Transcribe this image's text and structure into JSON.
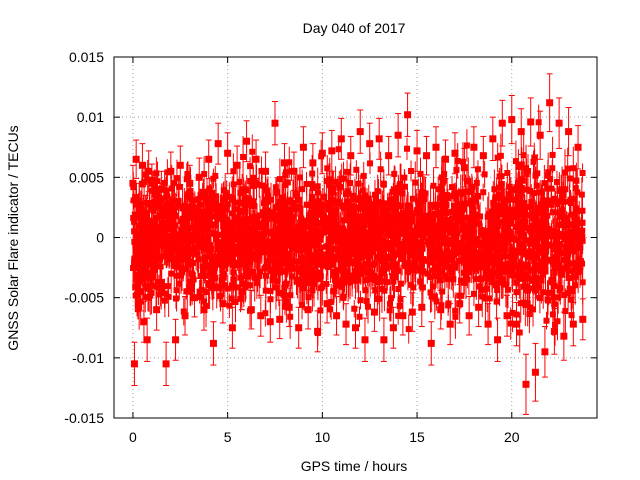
{
  "chart_data": {
    "type": "scatter",
    "title": "Day 040 of 2017",
    "xlabel": "GPS time / hours",
    "ylabel": "GNSS Solar Flare indicator / TECUs",
    "xlim": [
      -1,
      24.5
    ],
    "ylim": [
      -0.015,
      0.015
    ],
    "x_ticks": [
      0,
      5,
      10,
      15,
      20
    ],
    "x_tick_labels": [
      "0",
      "5",
      "10",
      "15",
      "20"
    ],
    "y_ticks": [
      -0.015,
      -0.01,
      -0.005,
      0,
      0.005,
      0.01,
      0.015
    ],
    "y_tick_labels": [
      "-0.015",
      "-0.01",
      "-0.005",
      "0",
      "0.005",
      "0.01",
      "0.015"
    ],
    "grid": true,
    "marker": "filled-square",
    "error_bars": true,
    "color": "#ff0000",
    "series": [
      {
        "x": [
          0.0,
          0.08,
          0.17,
          0.25,
          0.33,
          0.42,
          0.5,
          0.58,
          0.67,
          0.75,
          0.83,
          0.92,
          1.0,
          1.25,
          1.5,
          1.75,
          2.0,
          2.25,
          2.5,
          2.75,
          3.0,
          3.25,
          3.5,
          3.75,
          4.0,
          4.25,
          4.5,
          4.75,
          5.0,
          5.25,
          5.5,
          5.75,
          6.0,
          6.25,
          6.5,
          6.75,
          7.0,
          7.25,
          7.5,
          7.75,
          8.0,
          8.25,
          8.5,
          8.75,
          9.0,
          9.25,
          9.5,
          9.75,
          10.0,
          10.25,
          10.5,
          10.75,
          11.0,
          11.25,
          11.5,
          11.75,
          12.0,
          12.25,
          12.5,
          12.75,
          13.0,
          13.25,
          13.5,
          13.75,
          14.0,
          14.25,
          14.5,
          14.75,
          15.0,
          15.25,
          15.5,
          15.75,
          16.0,
          16.25,
          16.5,
          16.75,
          17.0,
          17.25,
          17.5,
          17.75,
          18.0,
          18.25,
          18.5,
          18.75,
          19.0,
          19.25,
          19.5,
          19.75,
          20.0,
          20.25,
          20.5,
          20.75,
          21.0,
          21.25,
          21.5,
          21.75,
          22.0,
          22.25,
          22.5,
          22.75,
          23.0,
          23.25,
          23.5,
          23.75
        ],
        "y": [
          0.0045,
          -0.0105,
          0.0065,
          -0.0025,
          0.003,
          -0.0045,
          0.006,
          -0.007,
          0.002,
          -0.0085,
          0.0055,
          -0.003,
          0.0045,
          -0.006,
          0.004,
          -0.0105,
          0.0055,
          -0.0085,
          0.006,
          -0.0065,
          0.0045,
          -0.005,
          0.005,
          -0.006,
          0.0065,
          -0.0088,
          0.0078,
          -0.0055,
          0.007,
          -0.0075,
          0.006,
          -0.0045,
          0.008,
          -0.006,
          0.0065,
          -0.0065,
          0.0055,
          -0.007,
          0.0095,
          -0.0068,
          0.0062,
          -0.0058,
          0.0055,
          -0.0075,
          0.0075,
          -0.006,
          0.0062,
          -0.0078,
          0.007,
          -0.0055,
          0.0072,
          -0.0065,
          0.0082,
          -0.0072,
          0.0068,
          -0.0075,
          0.0088,
          -0.0085,
          0.0078,
          -0.0062,
          0.0082,
          -0.0085,
          0.0068,
          -0.0075,
          0.0085,
          -0.0065,
          0.0102,
          -0.0062,
          0.0072,
          -0.0058,
          0.0068,
          -0.0088,
          0.0075,
          -0.006,
          0.0065,
          -0.0072,
          0.007,
          -0.0055,
          0.0058,
          -0.0065,
          0.0075,
          -0.0058,
          0.0068,
          -0.0072,
          0.0082,
          -0.0085,
          0.0095,
          -0.0065,
          0.0098,
          -0.0072,
          0.0088,
          -0.0122,
          0.0096,
          -0.0112,
          0.0085,
          -0.0095,
          0.0112,
          -0.0078,
          0.0095,
          -0.0082,
          0.0088,
          -0.0072,
          0.0075,
          -0.0068
        ],
        "yerr": [
          0.0015,
          0.0018,
          0.0016,
          0.0015,
          0.0015,
          0.0016,
          0.0018,
          0.0017,
          0.0015,
          0.0018,
          0.0017,
          0.0015,
          0.0016,
          0.0017,
          0.0015,
          0.0018,
          0.0016,
          0.0017,
          0.0016,
          0.0016,
          0.0015,
          0.0016,
          0.0016,
          0.0017,
          0.0016,
          0.0018,
          0.0017,
          0.0016,
          0.0017,
          0.0017,
          0.0016,
          0.0015,
          0.0017,
          0.0016,
          0.0016,
          0.0017,
          0.0016,
          0.0017,
          0.0018,
          0.0016,
          0.0016,
          0.0016,
          0.0016,
          0.0017,
          0.0017,
          0.0016,
          0.0016,
          0.0017,
          0.0017,
          0.0016,
          0.0017,
          0.0016,
          0.0017,
          0.0017,
          0.0016,
          0.0017,
          0.0018,
          0.0018,
          0.0017,
          0.0016,
          0.0017,
          0.0018,
          0.0016,
          0.0017,
          0.0018,
          0.0016,
          0.0018,
          0.0016,
          0.0017,
          0.0016,
          0.0016,
          0.0018,
          0.0017,
          0.0016,
          0.0016,
          0.0017,
          0.0017,
          0.0016,
          0.0016,
          0.0016,
          0.0017,
          0.0016,
          0.0016,
          0.0017,
          0.0018,
          0.0018,
          0.0019,
          0.0017,
          0.002,
          0.0018,
          0.0019,
          0.0025,
          0.002,
          0.0024,
          0.002,
          0.0021,
          0.0024,
          0.0019,
          0.0021,
          0.002,
          0.002,
          0.0018,
          0.0018,
          0.0017
        ]
      }
    ]
  }
}
